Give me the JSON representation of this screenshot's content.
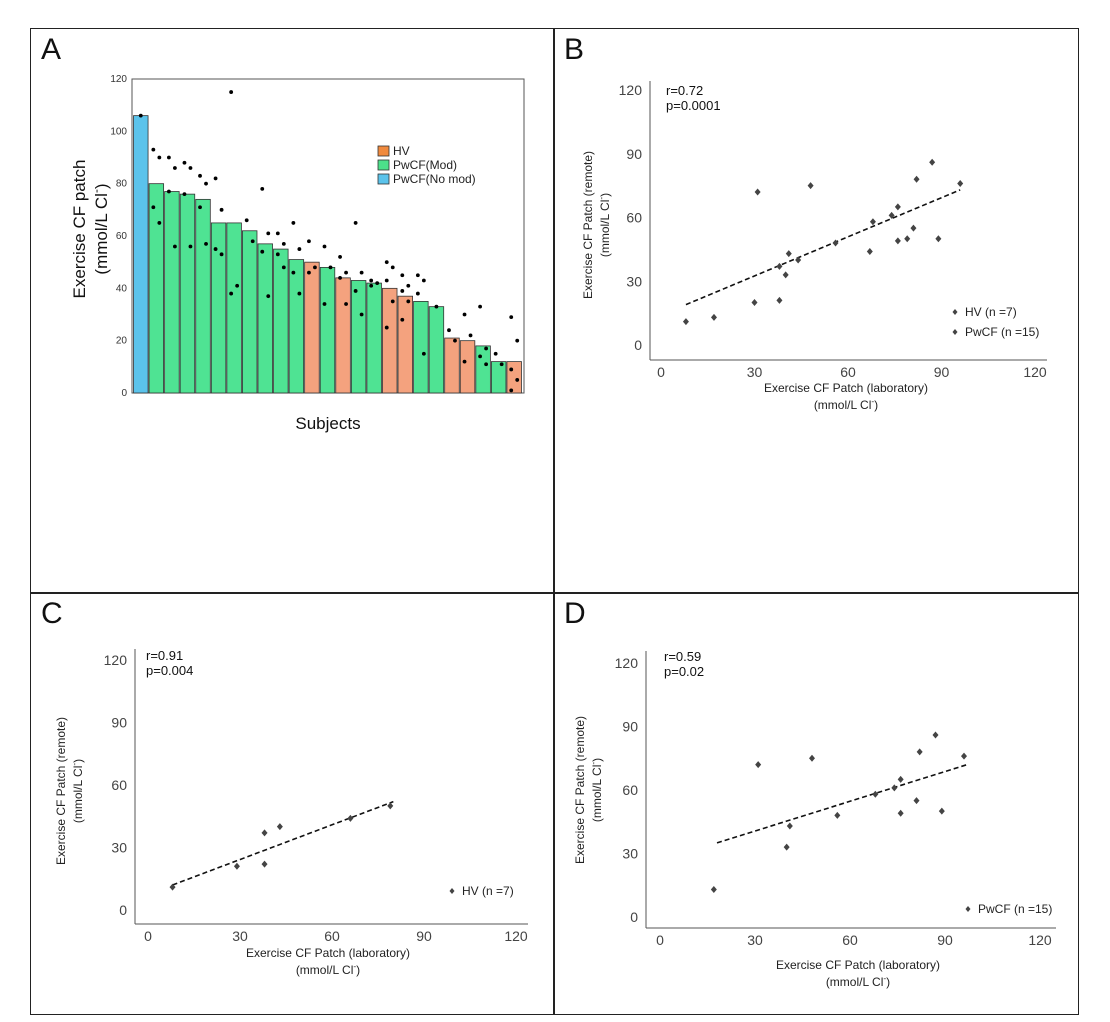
{
  "panels": [
    {
      "letter": "A",
      "chart_data": {
        "type": "bar",
        "xlabel": "Subjects",
        "ylabel_line1": "Exercise CF patch",
        "ylabel_line2": "(mmol/L Cl",
        "ylabel_sup": "-",
        "ylabel_close": ")",
        "ylim": [
          0,
          120
        ],
        "yticks": [
          0,
          20,
          40,
          60,
          80,
          100,
          120
        ],
        "legend_position": "top-right",
        "legend": [
          {
            "label": "HV",
            "color": "#F08A3E"
          },
          {
            "label": "PwCF(Mod)",
            "color": "#4CE08A"
          },
          {
            "label": "PwCF(No mod)",
            "color": "#5BC3EB"
          }
        ],
        "group_colors": {
          "HV": "#F4A27E",
          "Mod": "#4FE393",
          "NoMod": "#5BC3EB"
        },
        "bars": [
          {
            "group": "NoMod",
            "value": 106,
            "points": [
              106
            ]
          },
          {
            "group": "Mod",
            "value": 80,
            "points": [
              93,
              90,
              71,
              65
            ]
          },
          {
            "group": "Mod",
            "value": 77,
            "points": [
              90,
              86,
              77,
              56
            ]
          },
          {
            "group": "Mod",
            "value": 76,
            "points": [
              88,
              86,
              76,
              56
            ]
          },
          {
            "group": "Mod",
            "value": 74,
            "points": [
              83,
              80,
              71,
              57
            ]
          },
          {
            "group": "Mod",
            "value": 65,
            "points": [
              82,
              70,
              55,
              53
            ]
          },
          {
            "group": "Mod",
            "value": 65,
            "points": [
              115,
              41,
              38
            ]
          },
          {
            "group": "Mod",
            "value": 62,
            "points": [
              66,
              58
            ]
          },
          {
            "group": "Mod",
            "value": 57,
            "points": [
              78,
              61,
              54,
              37
            ]
          },
          {
            "group": "Mod",
            "value": 55,
            "points": [
              61,
              57,
              53,
              48
            ]
          },
          {
            "group": "Mod",
            "value": 51,
            "points": [
              65,
              55,
              46,
              38
            ]
          },
          {
            "group": "HV",
            "value": 50,
            "points": [
              58,
              48,
              46
            ]
          },
          {
            "group": "Mod",
            "value": 48,
            "points": [
              56,
              48,
              34
            ]
          },
          {
            "group": "HV",
            "value": 44,
            "points": [
              52,
              46,
              44,
              34
            ]
          },
          {
            "group": "Mod",
            "value": 43,
            "points": [
              65,
              46,
              39,
              30
            ]
          },
          {
            "group": "Mod",
            "value": 42,
            "points": [
              43,
              42,
              41
            ]
          },
          {
            "group": "HV",
            "value": 40,
            "points": [
              50,
              48,
              43,
              35,
              25
            ]
          },
          {
            "group": "HV",
            "value": 37,
            "points": [
              45,
              41,
              39,
              35,
              28
            ]
          },
          {
            "group": "Mod",
            "value": 35,
            "points": [
              45,
              43,
              38,
              15
            ]
          },
          {
            "group": "Mod",
            "value": 33,
            "points": [
              33
            ]
          },
          {
            "group": "HV",
            "value": 21,
            "points": [
              24,
              20
            ]
          },
          {
            "group": "HV",
            "value": 20,
            "points": [
              30,
              22,
              12
            ]
          },
          {
            "group": "Mod",
            "value": 18,
            "points": [
              33,
              17,
              14,
              11
            ]
          },
          {
            "group": "Mod",
            "value": 12,
            "points": [
              15,
              11
            ]
          },
          {
            "group": "HV",
            "value": 12,
            "points": [
              29,
              20,
              9,
              5,
              1
            ]
          }
        ]
      }
    },
    {
      "letter": "B",
      "chart_data": {
        "type": "scatter",
        "annotation_r": "r=0.72",
        "annotation_p": "p=0.0001",
        "xlabel_line1": "Exercise CF Patch (laboratory)",
        "xlabel_line2": "(mmol/L Cl",
        "ylabel_line1": "Exercise CF Patch (remote)",
        "ylabel_line2": "(mmol/L Cl",
        "label_sup": "-",
        "label_close": ")",
        "xlim": [
          0,
          120
        ],
        "ylim": [
          0,
          120
        ],
        "xticks": [
          0,
          30,
          60,
          90,
          120
        ],
        "yticks": [
          0,
          30,
          60,
          90,
          120
        ],
        "legend_position": "bottom-right",
        "legend": [
          "HV (n =7)",
          "PwCF (n =15)"
        ],
        "trend": {
          "x": [
            8,
            96
          ],
          "y": [
            19,
            73
          ]
        },
        "points": [
          [
            8,
            11
          ],
          [
            17,
            13
          ],
          [
            30,
            20
          ],
          [
            31,
            72
          ],
          [
            38,
            21
          ],
          [
            38,
            37
          ],
          [
            40,
            33
          ],
          [
            41,
            43
          ],
          [
            44,
            40
          ],
          [
            48,
            75
          ],
          [
            56,
            48
          ],
          [
            67,
            44
          ],
          [
            68,
            58
          ],
          [
            74,
            61
          ],
          [
            76,
            49
          ],
          [
            76,
            65
          ],
          [
            79,
            50
          ],
          [
            81,
            55
          ],
          [
            82,
            78
          ],
          [
            87,
            86
          ],
          [
            89,
            50
          ],
          [
            96,
            76
          ]
        ]
      }
    },
    {
      "letter": "C",
      "chart_data": {
        "type": "scatter",
        "annotation_r": "r=0.91",
        "annotation_p": "p=0.004",
        "xlabel_line1": "Exercise CF Patch (laboratory)",
        "xlabel_line2": "(mmol/L Cl",
        "ylabel_line1": "Exercise CF Patch (remote)",
        "ylabel_line2": "(mmol/L Cl",
        "label_sup": "-",
        "label_close": ")",
        "xlim": [
          0,
          120
        ],
        "ylim": [
          0,
          120
        ],
        "xticks": [
          0,
          30,
          60,
          90,
          120
        ],
        "yticks": [
          0,
          30,
          60,
          90,
          120
        ],
        "legend_position": "bottom-right",
        "legend": [
          "HV (n =7)"
        ],
        "trend": {
          "x": [
            8,
            80
          ],
          "y": [
            12,
            52
          ]
        },
        "points": [
          [
            8,
            11
          ],
          [
            29,
            21
          ],
          [
            38,
            22
          ],
          [
            38,
            37
          ],
          [
            43,
            40
          ],
          [
            66,
            44
          ],
          [
            79,
            50
          ]
        ]
      }
    },
    {
      "letter": "D",
      "chart_data": {
        "type": "scatter",
        "annotation_r": "r=0.59",
        "annotation_p": "p=0.02",
        "xlabel_line1": "Exercise CF Patch (laboratory)",
        "xlabel_line2": "(mmol/L Cl",
        "ylabel_line1": "Exercise CF Patch (remote)",
        "ylabel_line2": "(mmol/L Cl",
        "label_sup": "-",
        "label_close": ")",
        "xlim": [
          0,
          120
        ],
        "ylim": [
          0,
          120
        ],
        "xticks": [
          0,
          30,
          60,
          90,
          120
        ],
        "yticks": [
          0,
          30,
          60,
          90,
          120
        ],
        "legend_position": "bottom-right",
        "legend": [
          "PwCF (n =15)"
        ],
        "trend": {
          "x": [
            18,
            97
          ],
          "y": [
            35,
            72
          ]
        },
        "points": [
          [
            17,
            13
          ],
          [
            31,
            72
          ],
          [
            40,
            33
          ],
          [
            41,
            43
          ],
          [
            48,
            75
          ],
          [
            56,
            48
          ],
          [
            68,
            58
          ],
          [
            74,
            61
          ],
          [
            76,
            49
          ],
          [
            76,
            65
          ],
          [
            81,
            55
          ],
          [
            82,
            78
          ],
          [
            87,
            86
          ],
          [
            89,
            50
          ],
          [
            96,
            76
          ]
        ]
      }
    }
  ]
}
